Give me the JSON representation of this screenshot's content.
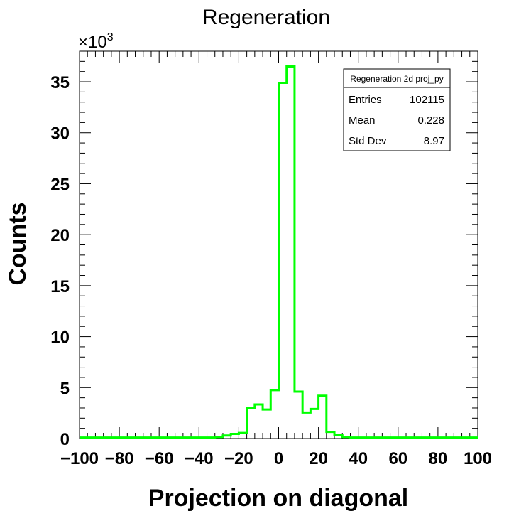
{
  "chart_data": {
    "type": "histogram",
    "title": "Regeneration",
    "xlabel": "Projection on diagonal",
    "ylabel": "Counts",
    "y_multiplier": "×10",
    "y_multiplier_exponent": "3",
    "xlim": [
      -100,
      100
    ],
    "ylim": [
      0,
      38
    ],
    "x_tick_labels": [
      "−100",
      "−80",
      "−60",
      "−40",
      "−20",
      "0",
      "20",
      "40",
      "60",
      "80",
      "100"
    ],
    "x_tick_values": [
      -100,
      -80,
      -60,
      -40,
      -20,
      0,
      20,
      40,
      60,
      80,
      100
    ],
    "y_tick_labels": [
      "0",
      "5",
      "10",
      "15",
      "20",
      "25",
      "30",
      "35"
    ],
    "y_tick_values": [
      0,
      5,
      10,
      15,
      20,
      25,
      30,
      35
    ],
    "bin_width": 4,
    "bin_edges_start": -100,
    "values": [
      0.1,
      0.1,
      0.1,
      0.1,
      0.1,
      0.1,
      0.1,
      0.1,
      0.1,
      0.1,
      0.1,
      0.1,
      0.1,
      0.1,
      0.1,
      0.1,
      0.1,
      0.15,
      0.3,
      0.45,
      0.55,
      3.0,
      3.35,
      2.85,
      4.75,
      34.9,
      36.5,
      4.6,
      2.55,
      2.9,
      4.2,
      0.65,
      0.35,
      0.15,
      0.1,
      0.1,
      0.1,
      0.1,
      0.1,
      0.1,
      0.1,
      0.1,
      0.1,
      0.1,
      0.1,
      0.1,
      0.1,
      0.1,
      0.1,
      0.1
    ],
    "line_color": "#00ff00",
    "legend": {
      "title": "Regeneration 2d proj_py",
      "rows": [
        {
          "label": "Entries",
          "value": "102115"
        },
        {
          "label": "Mean",
          "value": "0.228"
        },
        {
          "label": "Std Dev",
          "value": "8.97"
        }
      ]
    }
  }
}
